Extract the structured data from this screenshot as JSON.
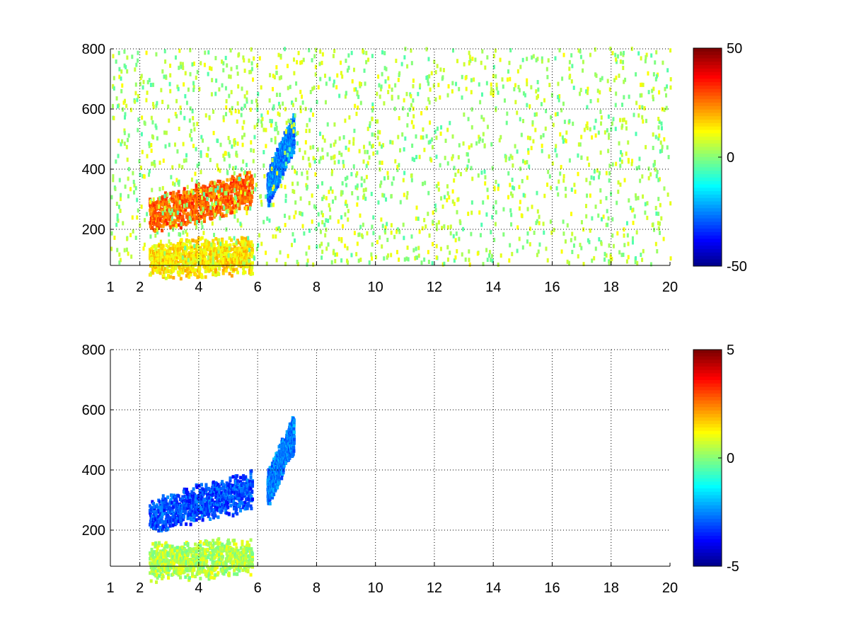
{
  "chart_data": [
    {
      "type": "heatmap",
      "title": "",
      "xlabel": "",
      "ylabel": "",
      "xlim": [
        1,
        20
      ],
      "ylim": [
        80,
        800
      ],
      "xticks": [
        1,
        2,
        4,
        6,
        8,
        10,
        12,
        14,
        16,
        18,
        20
      ],
      "xtick_labels": [
        "1",
        "2",
        "4",
        "6",
        "8",
        "10",
        "12",
        "14",
        "16",
        "18",
        "20"
      ],
      "yticks": [
        200,
        400,
        600,
        800
      ],
      "ytick_labels": [
        "200",
        "400",
        "600",
        "800"
      ],
      "grid": true,
      "colormap": "jet",
      "color_range": [
        -50,
        50
      ],
      "colorbar_ticks": [
        50,
        0,
        -50
      ],
      "colorbar_labels": [
        "50",
        "0",
        "-50"
      ],
      "features": [
        {
          "name": "main ridge",
          "x_range": [
            2.3,
            5.8
          ],
          "y_start": 240,
          "y_end": 330,
          "value": 28
        },
        {
          "name": "upper ridge",
          "x_range": [
            6.3,
            7.2
          ],
          "y_start": 330,
          "y_end": 520,
          "value": -25
        },
        {
          "name": "low band",
          "x_range": [
            2.3,
            5.8
          ],
          "y_start": 95,
          "y_end": 110,
          "value": 15
        },
        {
          "name": "scattered noise",
          "x_range": [
            1,
            20
          ],
          "y_range": [
            80,
            800
          ],
          "value": 4
        }
      ]
    },
    {
      "type": "heatmap",
      "title": "",
      "xlabel": "",
      "ylabel": "",
      "xlim": [
        1,
        20
      ],
      "ylim": [
        80,
        800
      ],
      "xticks": [
        1,
        2,
        4,
        6,
        8,
        10,
        12,
        14,
        16,
        18,
        20
      ],
      "xtick_labels": [
        "1",
        "2",
        "4",
        "6",
        "8",
        "10",
        "12",
        "14",
        "16",
        "18",
        "20"
      ],
      "yticks": [
        200,
        400,
        600,
        800
      ],
      "ytick_labels": [
        "200",
        "400",
        "600",
        "800"
      ],
      "grid": true,
      "colormap": "jet",
      "color_range": [
        -5,
        5
      ],
      "colorbar_ticks": [
        5,
        0,
        -5
      ],
      "colorbar_labels": [
        "5",
        "0",
        "-5"
      ],
      "features": [
        {
          "name": "main ridge",
          "x_range": [
            2.3,
            5.8
          ],
          "y_start": 240,
          "y_end": 330,
          "value": -3
        },
        {
          "name": "upper ridge",
          "x_range": [
            6.3,
            7.2
          ],
          "y_start": 330,
          "y_end": 520,
          "value": -2.5
        },
        {
          "name": "low band",
          "x_range": [
            2.3,
            5.8
          ],
          "y_start": 90,
          "y_end": 110,
          "value": 0.5
        }
      ]
    }
  ]
}
